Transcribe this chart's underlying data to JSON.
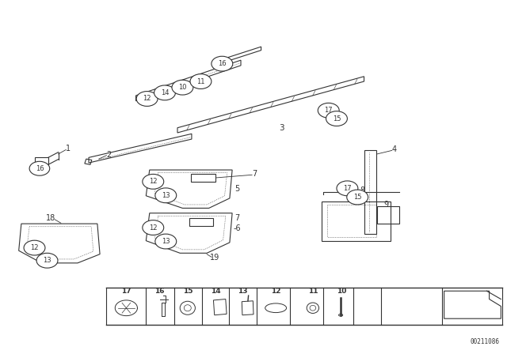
{
  "bg_color": "#ffffff",
  "diagram_id": "00211086",
  "gray": "#333333",
  "lw": 0.8
}
